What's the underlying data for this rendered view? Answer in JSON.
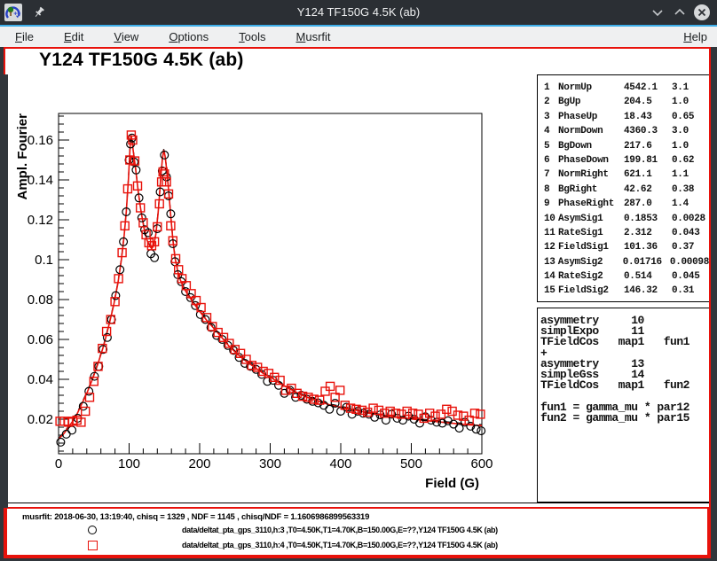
{
  "window": {
    "title": "Y124 TF150G 4.5K (ab)",
    "controls": {
      "minimize": "minimize",
      "maximize": "maximize",
      "close": "close"
    }
  },
  "menu": {
    "items": [
      "File",
      "Edit",
      "View",
      "Options",
      "Tools",
      "Musrfit"
    ],
    "right_items": [
      "Help"
    ]
  },
  "colors": {
    "accent": "#3daee9",
    "titlebar": "#2b2f34",
    "menubar": "#eff0f1",
    "canvas_highlight": "#e8120b",
    "series1": "#000000",
    "series2": "#e8120b"
  },
  "param_box": {
    "rows": [
      {
        "n": "1",
        "name": "NormUp",
        "value": "4542.1",
        "error": "3.1"
      },
      {
        "n": "2",
        "name": "BgUp",
        "value": "204.5",
        "error": "1.0"
      },
      {
        "n": "3",
        "name": "PhaseUp",
        "value": "18.43",
        "error": "0.65"
      },
      {
        "n": "4",
        "name": "NormDown",
        "value": "4360.3",
        "error": "3.0"
      },
      {
        "n": "5",
        "name": "BgDown",
        "value": "217.6",
        "error": "1.0"
      },
      {
        "n": "6",
        "name": "PhaseDown",
        "value": "199.81",
        "error": "0.62"
      },
      {
        "n": "7",
        "name": "NormRight",
        "value": "621.1",
        "error": "1.1"
      },
      {
        "n": "8",
        "name": "BgRight",
        "value": "42.62",
        "error": "0.38"
      },
      {
        "n": "9",
        "name": "PhaseRight",
        "value": "287.0",
        "error": "1.4"
      },
      {
        "n": "10",
        "name": "AsymSig1",
        "value": "0.1853",
        "error": "0.0028"
      },
      {
        "n": "11",
        "name": "RateSig1",
        "value": "2.312",
        "error": "0.043"
      },
      {
        "n": "12",
        "name": "FieldSig1",
        "value": "101.36",
        "error": "0.37"
      },
      {
        "n": "13",
        "name": "AsymSig2",
        "value": "0.01716",
        "error": "0.00098"
      },
      {
        "n": "14",
        "name": "RateSig2",
        "value": "0.514",
        "error": "0.045"
      },
      {
        "n": "15",
        "name": "FieldSig2",
        "value": "146.32",
        "error": "0.31"
      }
    ]
  },
  "theory_box": {
    "lines": [
      "asymmetry     10",
      "simplExpo     11",
      "TFieldCos   map1   fun1",
      "+",
      "asymmetry     13",
      "simpleGss     14",
      "TFieldCos   map1   fun2",
      "",
      "fun1 = gamma_mu * par12",
      "fun2 = gamma_mu * par15"
    ]
  },
  "status": {
    "fit_info": "musrfit: 2018-06-30, 13:19:40, chisq = 1329 , NDF = 1145 , chisq/NDF = 1.1606986899563319"
  },
  "legend": {
    "entries": [
      {
        "marker": "circle",
        "color": "#000000",
        "label": "data/deltat_pta_gps_3110,h:3 ,T0=4.50K,T1=4.70K,B=150.00G,E=??,Y124 TF150G 4.5K (ab)"
      },
      {
        "marker": "square",
        "color": "#e8120b",
        "label": "data/deltat_pta_gps_3110,h:4 ,T0=4.50K,T1=4.70K,B=150.00G,E=??,Y124 TF150G 4.5K (ab)"
      }
    ]
  },
  "chart_data": {
    "type": "scatter",
    "title": "Y124 TF150G 4.5K (ab)",
    "xlabel": "Field (G)",
    "ylabel": "Ampl. Fourier",
    "xlim": [
      0,
      600
    ],
    "ylim": [
      0.0027,
      0.1733
    ],
    "x_ticks": [
      0,
      100,
      200,
      300,
      400,
      500,
      600
    ],
    "x_minor_step": 20,
    "y_ticks": [
      "0.02",
      "0.04",
      "0.06",
      "0.08",
      "0.1",
      "0.12",
      "0.14",
      "0.16"
    ],
    "y_minor_step": 0.004,
    "grid": false,
    "legend_position": "bottom-pad",
    "fit_curve": [
      [
        0,
        0.01
      ],
      [
        8,
        0.013
      ],
      [
        16,
        0.017
      ],
      [
        24,
        0.021
      ],
      [
        32,
        0.027
      ],
      [
        40,
        0.033
      ],
      [
        48,
        0.04
      ],
      [
        56,
        0.048
      ],
      [
        64,
        0.057
      ],
      [
        72,
        0.068
      ],
      [
        78,
        0.077
      ],
      [
        84,
        0.088
      ],
      [
        89,
        0.1
      ],
      [
        93,
        0.112
      ],
      [
        96,
        0.124
      ],
      [
        99,
        0.14
      ],
      [
        101,
        0.154
      ],
      [
        102,
        0.16
      ],
      [
        103,
        0.162
      ],
      [
        104,
        0.16
      ],
      [
        106,
        0.154
      ],
      [
        109,
        0.146
      ],
      [
        113,
        0.134
      ],
      [
        117,
        0.124
      ],
      [
        121,
        0.116
      ],
      [
        125,
        0.11
      ],
      [
        129,
        0.107
      ],
      [
        132,
        0.1055
      ],
      [
        135,
        0.107
      ],
      [
        138,
        0.113
      ],
      [
        141,
        0.123
      ],
      [
        143,
        0.132
      ],
      [
        145,
        0.142
      ],
      [
        147,
        0.15
      ],
      [
        149,
        0.155
      ],
      [
        151,
        0.152
      ],
      [
        153,
        0.146
      ],
      [
        156,
        0.135
      ],
      [
        159,
        0.122
      ],
      [
        162,
        0.11
      ],
      [
        165,
        0.101
      ],
      [
        169,
        0.094
      ],
      [
        173,
        0.0895
      ],
      [
        178,
        0.0855
      ],
      [
        184,
        0.082
      ],
      [
        191,
        0.0785
      ],
      [
        199,
        0.0745
      ],
      [
        209,
        0.07
      ],
      [
        219,
        0.066
      ],
      [
        230,
        0.0615
      ],
      [
        242,
        0.0565
      ],
      [
        254,
        0.0525
      ],
      [
        266,
        0.049
      ],
      [
        278,
        0.046
      ],
      [
        290,
        0.043
      ],
      [
        303,
        0.0405
      ],
      [
        316,
        0.0375
      ],
      [
        329,
        0.035
      ],
      [
        342,
        0.0325
      ],
      [
        356,
        0.0305
      ],
      [
        370,
        0.0289
      ],
      [
        384,
        0.0272
      ],
      [
        398,
        0.0262
      ],
      [
        412,
        0.0252
      ],
      [
        426,
        0.0242
      ],
      [
        440,
        0.023
      ],
      [
        454,
        0.0222
      ],
      [
        468,
        0.0215
      ],
      [
        482,
        0.021
      ],
      [
        496,
        0.0203
      ],
      [
        510,
        0.0197
      ],
      [
        524,
        0.0192
      ],
      [
        538,
        0.0187
      ],
      [
        552,
        0.0182
      ],
      [
        566,
        0.0177
      ],
      [
        580,
        0.0172
      ],
      [
        600,
        0.0168
      ]
    ],
    "series": [
      {
        "name": "data/deltat_pta_gps_3110,h:3 ,T0=4.50K,T1=4.70K,B=150.00G,E=??,Y124 TF150G 4.5K (ab)",
        "marker": "circle",
        "color": "#000000",
        "points": [
          [
            3,
            0.0085
          ],
          [
            11,
            0.0125
          ],
          [
            19,
            0.0145
          ],
          [
            27,
            0.0205
          ],
          [
            35,
            0.0265
          ],
          [
            43,
            0.034
          ],
          [
            51,
            0.0415
          ],
          [
            57,
            0.0465
          ],
          [
            63,
            0.055
          ],
          [
            69,
            0.061
          ],
          [
            75,
            0.07
          ],
          [
            81,
            0.082
          ],
          [
            87,
            0.095
          ],
          [
            92,
            0.109
          ],
          [
            96,
            0.124
          ],
          [
            100,
            0.15
          ],
          [
            102,
            0.158
          ],
          [
            104,
            0.161
          ],
          [
            107,
            0.149
          ],
          [
            110,
            0.145
          ],
          [
            114,
            0.131
          ],
          [
            118,
            0.121
          ],
          [
            122,
            0.115
          ],
          [
            127,
            0.1135
          ],
          [
            131,
            0.103
          ],
          [
            136,
            0.101
          ],
          [
            140,
            0.1155
          ],
          [
            144,
            0.134
          ],
          [
            147,
            0.1445
          ],
          [
            150,
            0.1525
          ],
          [
            153,
            0.1415
          ],
          [
            156,
            0.132
          ],
          [
            159,
            0.123
          ],
          [
            162,
            0.108
          ],
          [
            165,
            0.099
          ],
          [
            169,
            0.0925
          ],
          [
            174,
            0.089
          ],
          [
            180,
            0.084
          ],
          [
            187,
            0.081
          ],
          [
            194,
            0.077
          ],
          [
            201,
            0.0725
          ],
          [
            208,
            0.07
          ],
          [
            216,
            0.066
          ],
          [
            224,
            0.062
          ],
          [
            232,
            0.06
          ],
          [
            240,
            0.057
          ],
          [
            248,
            0.0545
          ],
          [
            256,
            0.051
          ],
          [
            264,
            0.048
          ],
          [
            272,
            0.0465
          ],
          [
            280,
            0.045
          ],
          [
            288,
            0.0425
          ],
          [
            296,
            0.039
          ],
          [
            304,
            0.0395
          ],
          [
            312,
            0.037
          ],
          [
            320,
            0.033
          ],
          [
            328,
            0.0345
          ],
          [
            336,
            0.031
          ],
          [
            344,
            0.032
          ],
          [
            352,
            0.03
          ],
          [
            360,
            0.029
          ],
          [
            368,
            0.0282
          ],
          [
            376,
            0.027
          ],
          [
            384,
            0.025
          ],
          [
            392,
            0.028
          ],
          [
            400,
            0.024
          ],
          [
            408,
            0.026
          ],
          [
            416,
            0.0225
          ],
          [
            424,
            0.024
          ],
          [
            432,
            0.023
          ],
          [
            440,
            0.0225
          ],
          [
            448,
            0.021
          ],
          [
            456,
            0.0222
          ],
          [
            464,
            0.0195
          ],
          [
            472,
            0.0225
          ],
          [
            480,
            0.0205
          ],
          [
            488,
            0.0195
          ],
          [
            496,
            0.0215
          ],
          [
            504,
            0.02
          ],
          [
            512,
            0.018
          ],
          [
            520,
            0.0212
          ],
          [
            528,
            0.0195
          ],
          [
            536,
            0.0185
          ],
          [
            544,
            0.018
          ],
          [
            552,
            0.0192
          ],
          [
            560,
            0.0175
          ],
          [
            568,
            0.0155
          ],
          [
            576,
            0.0185
          ],
          [
            584,
            0.0165
          ],
          [
            592,
            0.015
          ],
          [
            599,
            0.0142
          ]
        ]
      },
      {
        "name": "data/deltat_pta_gps_3110,h:4 ,T0=4.50K,T1=4.70K,B=150.00G,E=??,Y124 TF150G 4.5K (ab)",
        "marker": "square",
        "color": "#e8120b",
        "points": [
          [
            2,
            0.019
          ],
          [
            8,
            0.019
          ],
          [
            14,
            0.0185
          ],
          [
            20,
            0.019
          ],
          [
            26,
            0.0195
          ],
          [
            32,
            0.0185
          ],
          [
            38,
            0.024
          ],
          [
            44,
            0.031
          ],
          [
            50,
            0.039
          ],
          [
            56,
            0.0465
          ],
          [
            62,
            0.0555
          ],
          [
            68,
            0.064
          ],
          [
            74,
            0.07
          ],
          [
            80,
            0.079
          ],
          [
            85,
            0.0905
          ],
          [
            90,
            0.1035
          ],
          [
            94,
            0.117
          ],
          [
            98,
            0.1355
          ],
          [
            101,
            0.15
          ],
          [
            103,
            0.1625
          ],
          [
            105,
            0.16
          ],
          [
            108,
            0.1495
          ],
          [
            112,
            0.137
          ],
          [
            116,
            0.126
          ],
          [
            120,
            0.1185
          ],
          [
            124,
            0.1125
          ],
          [
            128,
            0.1085
          ],
          [
            132,
            0.107
          ],
          [
            136,
            0.109
          ],
          [
            140,
            0.1165
          ],
          [
            143,
            0.128
          ],
          [
            146,
            0.139
          ],
          [
            148,
            0.144
          ],
          [
            150,
            0.143
          ],
          [
            153,
            0.139
          ],
          [
            156,
            0.133
          ],
          [
            159,
            0.117
          ],
          [
            162,
            0.1095
          ],
          [
            166,
            0.1005
          ],
          [
            170,
            0.095
          ],
          [
            175,
            0.0905
          ],
          [
            181,
            0.087
          ],
          [
            188,
            0.083
          ],
          [
            195,
            0.0795
          ],
          [
            202,
            0.076
          ],
          [
            210,
            0.071
          ],
          [
            218,
            0.0665
          ],
          [
            226,
            0.0635
          ],
          [
            234,
            0.061
          ],
          [
            242,
            0.058
          ],
          [
            250,
            0.055
          ],
          [
            258,
            0.053
          ],
          [
            266,
            0.05
          ],
          [
            274,
            0.047
          ],
          [
            282,
            0.046
          ],
          [
            290,
            0.044
          ],
          [
            298,
            0.043
          ],
          [
            306,
            0.041
          ],
          [
            314,
            0.0395
          ],
          [
            322,
            0.0345
          ],
          [
            330,
            0.0355
          ],
          [
            338,
            0.033
          ],
          [
            346,
            0.0315
          ],
          [
            354,
            0.031
          ],
          [
            362,
            0.03
          ],
          [
            370,
            0.0295
          ],
          [
            378,
            0.034
          ],
          [
            385,
            0.0365
          ],
          [
            392,
            0.031
          ],
          [
            399,
            0.0345
          ],
          [
            406,
            0.027
          ],
          [
            414,
            0.0255
          ],
          [
            422,
            0.025
          ],
          [
            430,
            0.0245
          ],
          [
            438,
            0.0235
          ],
          [
            446,
            0.0255
          ],
          [
            454,
            0.0245
          ],
          [
            462,
            0.023
          ],
          [
            470,
            0.024
          ],
          [
            478,
            0.023
          ],
          [
            486,
            0.0225
          ],
          [
            494,
            0.024
          ],
          [
            502,
            0.023
          ],
          [
            510,
            0.0225
          ],
          [
            518,
            0.0205
          ],
          [
            526,
            0.023
          ],
          [
            534,
            0.0215
          ],
          [
            542,
            0.0225
          ],
          [
            550,
            0.025
          ],
          [
            558,
            0.024
          ],
          [
            566,
            0.022
          ],
          [
            574,
            0.0215
          ],
          [
            582,
            0.0195
          ],
          [
            590,
            0.023
          ],
          [
            598,
            0.0225
          ]
        ]
      }
    ]
  }
}
